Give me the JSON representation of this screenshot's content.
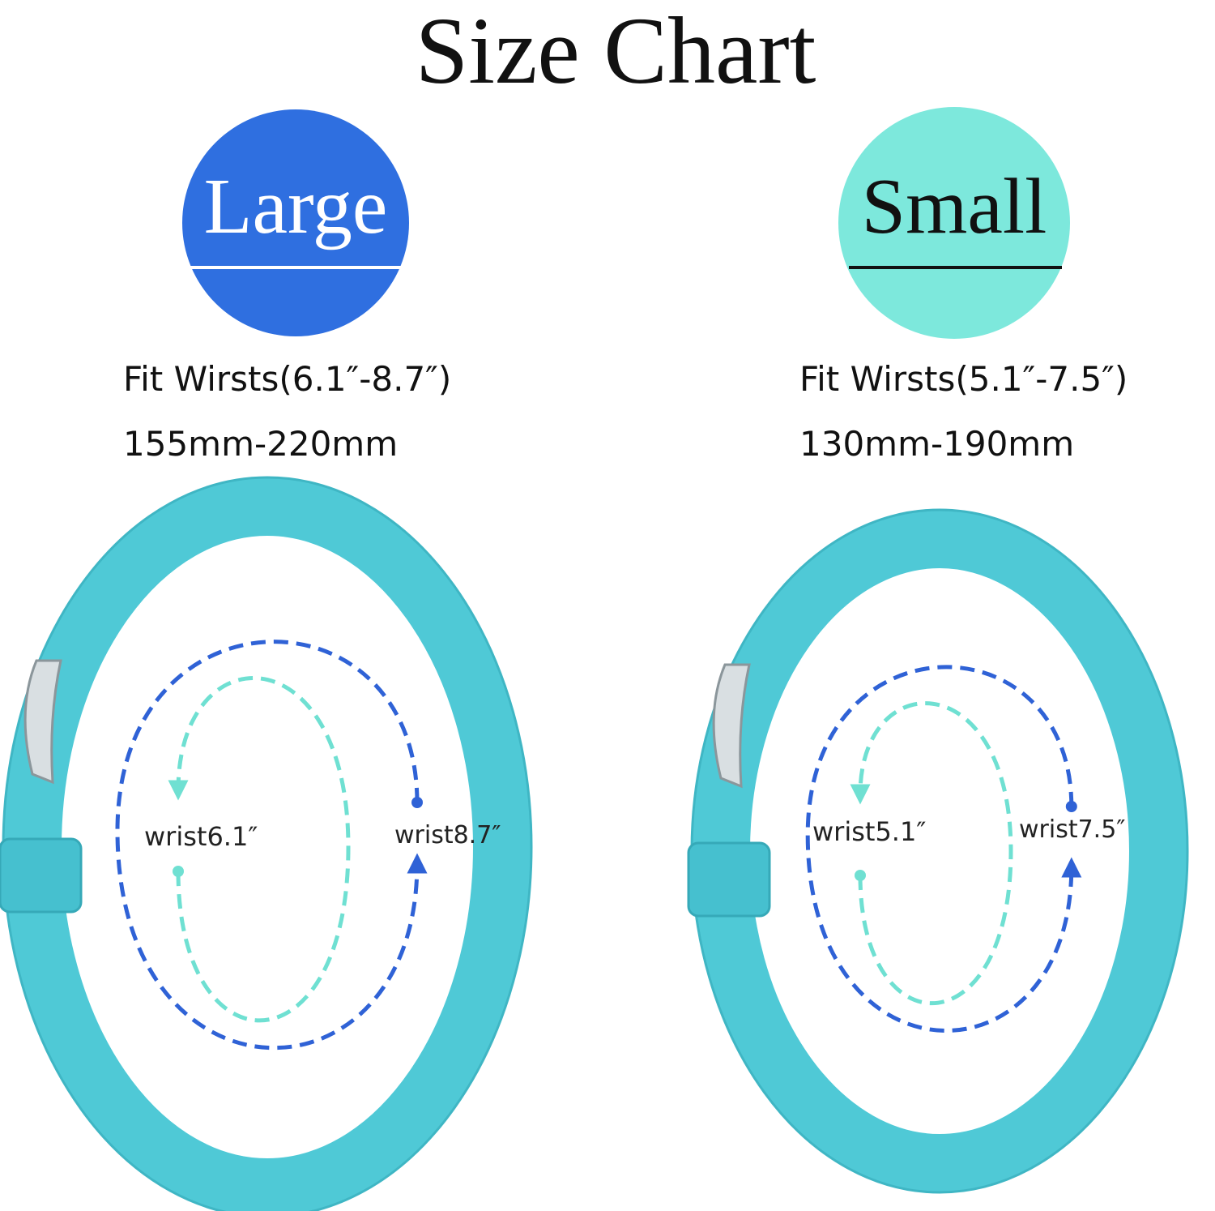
{
  "title": "Size Chart",
  "sizes": [
    {
      "label": "Large",
      "fit": "Fit Wirsts(6.1″-8.7″)",
      "mm": "155mm-220mm",
      "inner_label": "wrist6.1″",
      "outer_label": "wrist8.7″"
    },
    {
      "label": "Small",
      "fit": "Fit Wirsts(5.1″-7.5″)",
      "mm": "130mm-190mm",
      "inner_label": "wrist5.1″",
      "outer_label": "wrist7.5″"
    }
  ]
}
